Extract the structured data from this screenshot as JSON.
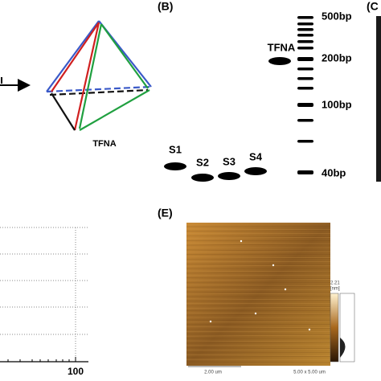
{
  "panel_a": {
    "label": "TFNA"
  },
  "panel_b": {
    "tag": "(B)",
    "lanes": [
      "S1",
      "S2",
      "S3",
      "S4"
    ],
    "product": "TFNA",
    "ladder": [
      "500bp",
      "200bp",
      "100bp",
      "40bp"
    ]
  },
  "panel_c": {
    "tag": "(C"
  },
  "panel_d": {
    "x_tick": "100"
  },
  "panel_e": {
    "tag": "(E)",
    "scale_bar": "2.00 um",
    "scan_size": "5.00 x 5.00 um",
    "color_max": "2.21",
    "color_unit": "[nm]"
  }
}
